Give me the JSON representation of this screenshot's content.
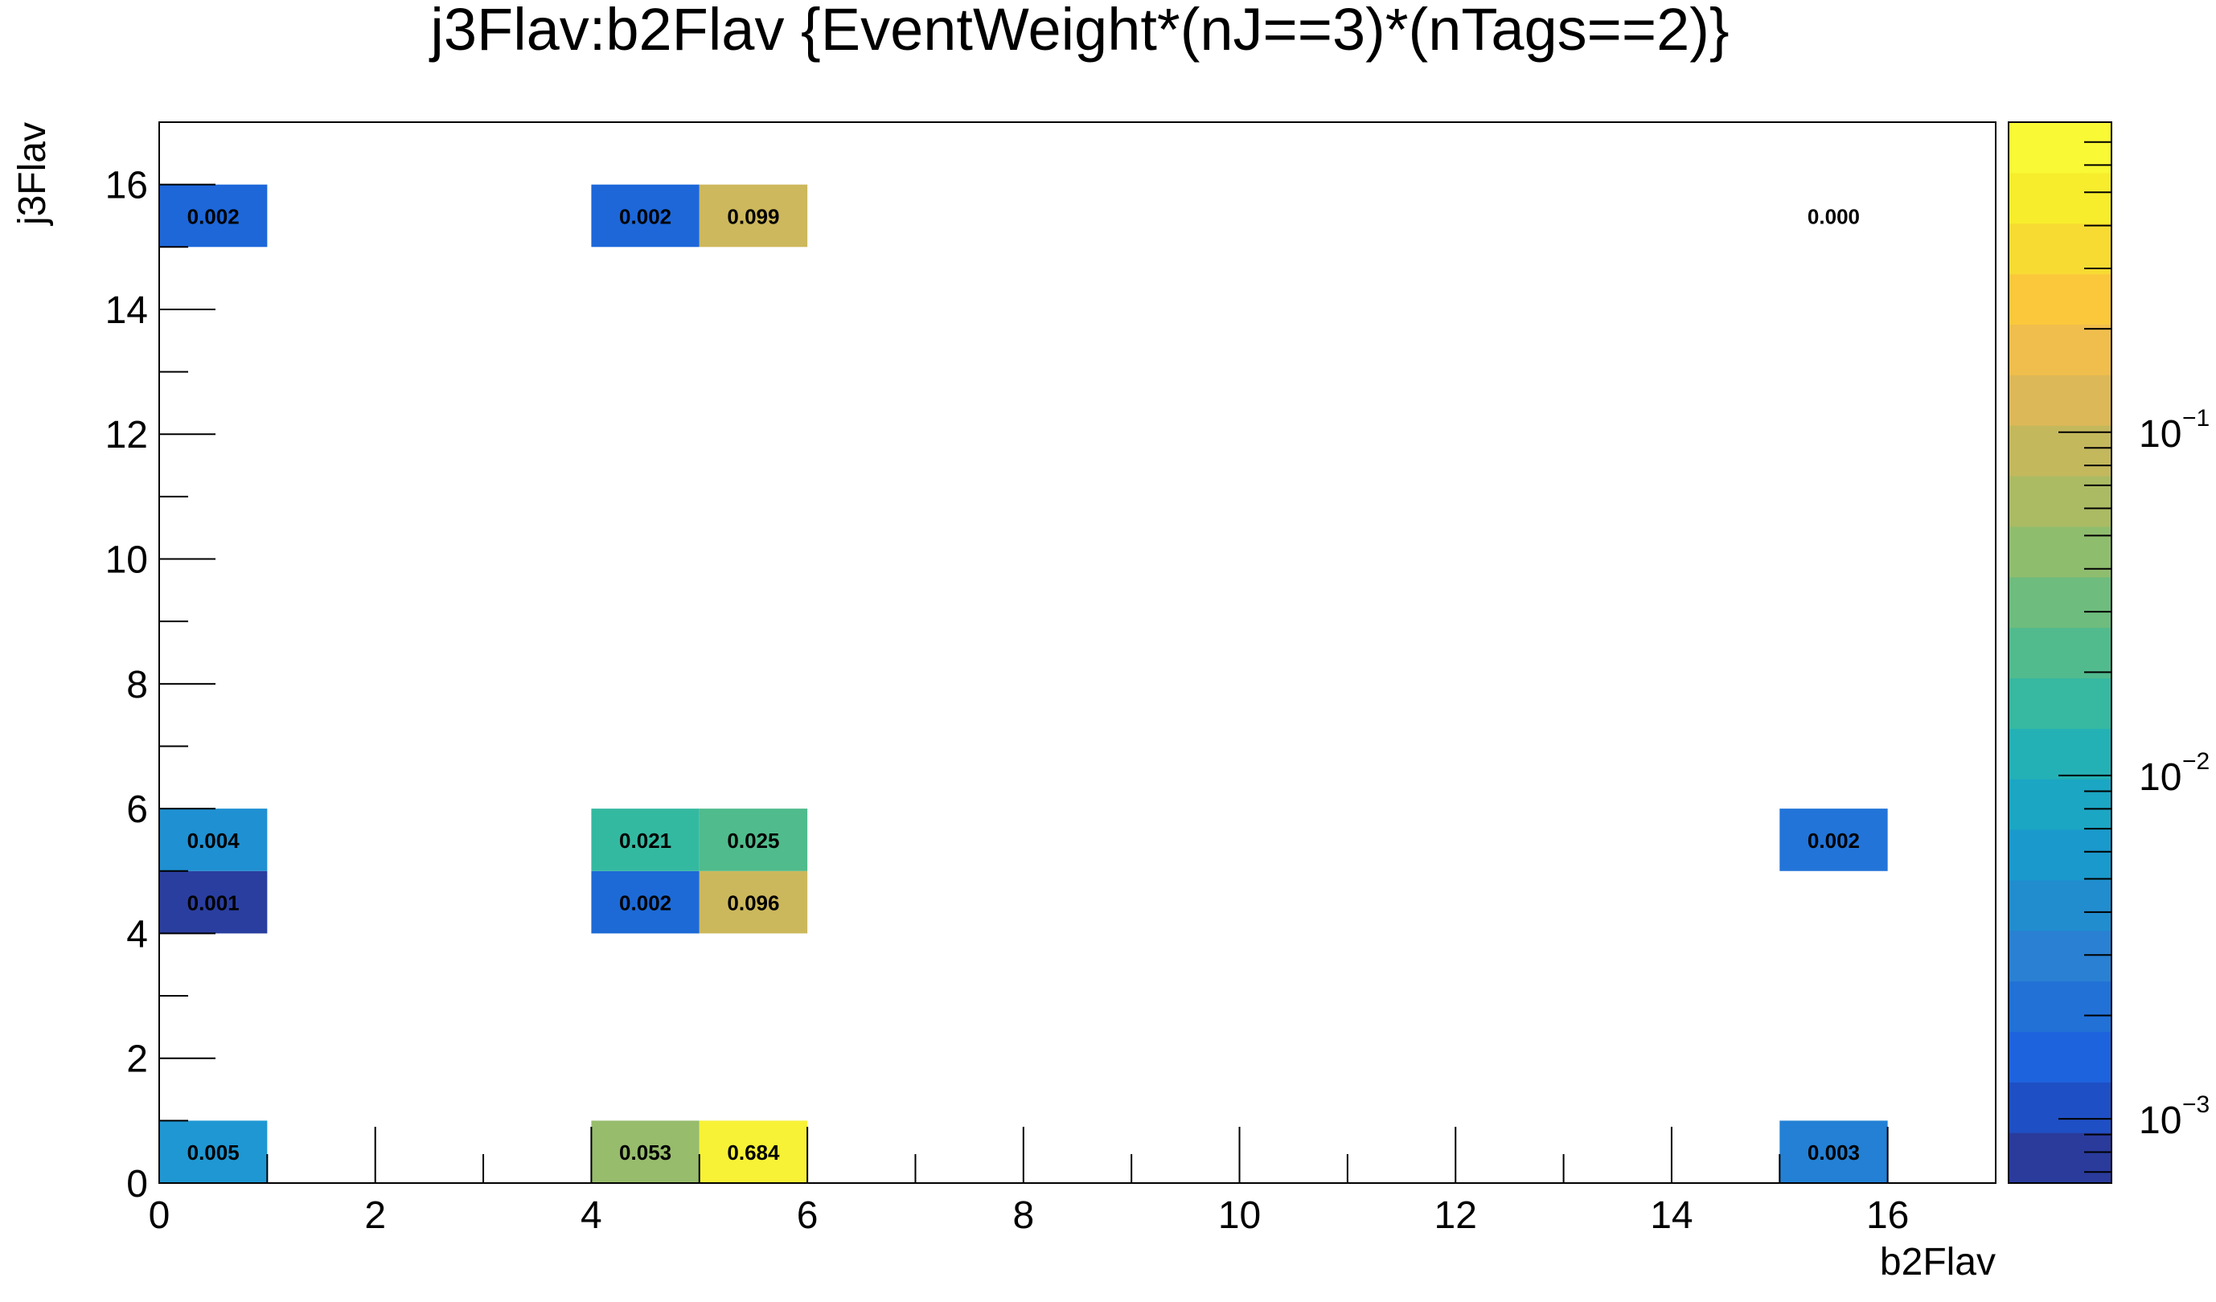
{
  "chart_data": {
    "type": "heatmap",
    "title": "j3Flav:b2Flav {EventWeight*(nJ==3)*(nTags==2)}",
    "xlabel": "b2Flav",
    "ylabel": "j3Flav",
    "xlim": [
      0,
      17
    ],
    "ylim": [
      0,
      17
    ],
    "x_ticks": [
      "0",
      "2",
      "4",
      "6",
      "8",
      "10",
      "12",
      "14",
      "16"
    ],
    "y_ticks": [
      "0",
      "2",
      "4",
      "6",
      "8",
      "10",
      "12",
      "14",
      "16"
    ],
    "colorbar": {
      "scale": "log",
      "range": [
        0.00065,
        0.8
      ],
      "ticks": [
        {
          "value": 0.001,
          "base": "10",
          "exp": "−3"
        },
        {
          "value": 0.01,
          "base": "10",
          "exp": "−2"
        },
        {
          "value": 0.1,
          "base": "10",
          "exp": "−1"
        }
      ],
      "palette": [
        "#2a3b9c",
        "#1f4fc4",
        "#1e63de",
        "#2171d7",
        "#2a80d2",
        "#218dcf",
        "#1a99cc",
        "#1ba6c4",
        "#24b1b5",
        "#37b8a1",
        "#51bb8e",
        "#6ebc7e",
        "#8fbd6e",
        "#aabb63",
        "#c4b85d",
        "#dcb858",
        "#f0be4c",
        "#fbc83c",
        "#f8db32",
        "#f7ed2c",
        "#f9f935"
      ]
    },
    "cells": [
      {
        "x": 0,
        "y": 0,
        "value": 0.005,
        "label": "0.005",
        "color": "#1f97d3"
      },
      {
        "x": 4,
        "y": 0,
        "value": 0.053,
        "label": "0.053",
        "color": "#97bc6c"
      },
      {
        "x": 5,
        "y": 0,
        "value": 0.684,
        "label": "0.684",
        "color": "#f7f236"
      },
      {
        "x": 15,
        "y": 0,
        "value": 0.003,
        "label": "0.003",
        "color": "#2380d4"
      },
      {
        "x": 0,
        "y": 4,
        "value": 0.001,
        "label": "0.001",
        "color": "#2a3e9f"
      },
      {
        "x": 4,
        "y": 4,
        "value": 0.002,
        "label": "0.002",
        "color": "#1d6ad6"
      },
      {
        "x": 5,
        "y": 4,
        "value": 0.096,
        "label": "0.096",
        "color": "#ccb85c"
      },
      {
        "x": 0,
        "y": 5,
        "value": 0.004,
        "label": "0.004",
        "color": "#1f90d2"
      },
      {
        "x": 4,
        "y": 5,
        "value": 0.021,
        "label": "0.021",
        "color": "#34b9a1"
      },
      {
        "x": 5,
        "y": 5,
        "value": 0.025,
        "label": "0.025",
        "color": "#50bb8c"
      },
      {
        "x": 15,
        "y": 5,
        "value": 0.002,
        "label": "0.002",
        "color": "#2274d8"
      },
      {
        "x": 0,
        "y": 15,
        "value": 0.002,
        "label": "0.002",
        "color": "#1d67d9"
      },
      {
        "x": 4,
        "y": 15,
        "value": 0.002,
        "label": "0.002",
        "color": "#1d67d9"
      },
      {
        "x": 5,
        "y": 15,
        "value": 0.099,
        "label": "0.099",
        "color": "#cdb85d"
      },
      {
        "x": 15,
        "y": 15,
        "value": 0.0,
        "label": "0.000",
        "color": ""
      }
    ]
  }
}
